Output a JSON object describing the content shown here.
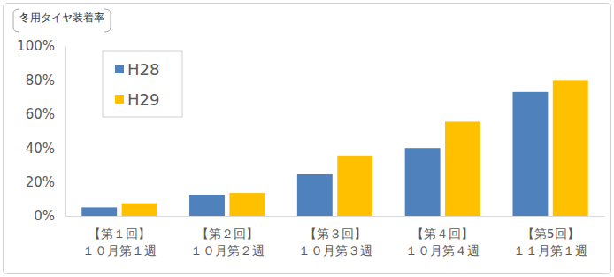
{
  "chart_data": {
    "type": "bar",
    "y_label": "冬用タイヤ装着率",
    "categories": [
      "【第１回】\n１０月第１週",
      "【第２回】\n１０月第２週",
      "【第３回】\n１０月第３週",
      "【第４回】\n１０月第４週",
      "【第5回】\n１１月第１週"
    ],
    "series": [
      {
        "name": "H28",
        "color": "#4f81bd",
        "values": [
          5,
          12.5,
          24.5,
          40,
          73
        ]
      },
      {
        "name": "H29",
        "color": "#ffc000",
        "values": [
          7.5,
          13.5,
          35.5,
          55.5,
          80
        ]
      }
    ],
    "ylim": [
      0,
      100
    ],
    "yticks": [
      {
        "value": 0,
        "label": "0%"
      },
      {
        "value": 20,
        "label": "20%"
      },
      {
        "value": 40,
        "label": "40%"
      },
      {
        "value": 60,
        "label": "60%"
      },
      {
        "value": 80,
        "label": "80%"
      },
      {
        "value": 100,
        "label": "100%"
      }
    ],
    "grid": false,
    "legend": "upper left"
  }
}
